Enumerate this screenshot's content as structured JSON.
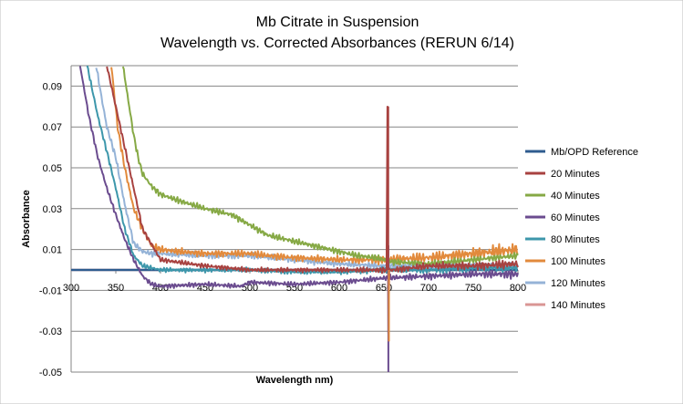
{
  "chart_data": {
    "type": "line",
    "title": "Mb Citrate in Suspension",
    "subtitle": "Wavelength vs. Corrected Absorbances (RERUN 6/14)",
    "xlabel": "Wavelength nm)",
    "ylabel": "Absorbance",
    "xlim": [
      300,
      800
    ],
    "ylim": [
      -0.05,
      0.1
    ],
    "x_ticks": [
      "300",
      "350",
      "400",
      "450",
      "500",
      "550",
      "600",
      "650",
      "700",
      "750",
      "800"
    ],
    "y_ticks": [
      "-0.05",
      "-0.03",
      "-0.01",
      "0.01",
      "0.03",
      "0.05",
      "0.07",
      "0.09"
    ],
    "grid": "horizontal",
    "legend_position": "right",
    "series": [
      {
        "name": "Mb/OPD Reference",
        "color": "#2F5C8F",
        "x": [
          300,
          800
        ],
        "y": [
          0,
          0
        ]
      },
      {
        "name": "20 Minutes",
        "color": "#A84240",
        "x": [
          340,
          350,
          360,
          370,
          380,
          400,
          450,
          500,
          550,
          600,
          650,
          653,
          654,
          655,
          656,
          657,
          660,
          700,
          750,
          800
        ],
        "y": [
          0.1,
          0.08,
          0.06,
          0.04,
          0.02,
          0.005,
          0.002,
          0.0,
          0.0,
          0.0,
          0.0,
          0.0,
          0.08,
          -0.03,
          0.0,
          0.0,
          0.0,
          0.002,
          0.002,
          0.003
        ]
      },
      {
        "name": "40 Minutes",
        "color": "#86A945",
        "x": [
          358,
          365,
          370,
          375,
          380,
          390,
          400,
          420,
          450,
          480,
          500,
          520,
          550,
          580,
          600,
          620,
          640,
          660,
          700,
          750,
          800
        ],
        "y": [
          0.1,
          0.08,
          0.066,
          0.055,
          0.047,
          0.041,
          0.037,
          0.034,
          0.03,
          0.027,
          0.022,
          0.017,
          0.014,
          0.011,
          0.009,
          0.007,
          0.006,
          0.004,
          0.003,
          0.005,
          0.007
        ]
      },
      {
        "name": "60 Minutes",
        "color": "#6B4C8F",
        "x": [
          310,
          320,
          330,
          340,
          350,
          360,
          370,
          380,
          390,
          400,
          450,
          490,
          500,
          550,
          600,
          650,
          700,
          750,
          800
        ],
        "y": [
          0.1,
          0.075,
          0.055,
          0.04,
          0.027,
          0.015,
          0.005,
          -0.003,
          -0.007,
          -0.008,
          -0.007,
          -0.008,
          -0.006,
          -0.007,
          -0.006,
          -0.004,
          -0.003,
          -0.002,
          -0.002
        ]
      },
      {
        "name": "80 Minutes",
        "color": "#3D97AB",
        "x": [
          318,
          330,
          340,
          350,
          360,
          370,
          380,
          390,
          400,
          450,
          500,
          550,
          600,
          650,
          700,
          750,
          800
        ],
        "y": [
          0.1,
          0.075,
          0.058,
          0.04,
          0.02,
          0.007,
          0.002,
          0.001,
          0.0,
          0.0,
          0.0,
          -0.001,
          -0.001,
          0.0,
          0.0,
          0.001,
          0.001
        ]
      },
      {
        "name": "100 Minutes",
        "color": "#E28A3C",
        "x": [
          345,
          352,
          360,
          370,
          380,
          390,
          400,
          420,
          450,
          480,
          500,
          520,
          550,
          600,
          650,
          700,
          750,
          800
        ],
        "y": [
          0.1,
          0.07,
          0.05,
          0.03,
          0.02,
          0.012,
          0.01,
          0.009,
          0.008,
          0.008,
          0.008,
          0.007,
          0.006,
          0.005,
          0.005,
          0.006,
          0.008,
          0.01
        ]
      },
      {
        "name": "120 Minutes",
        "color": "#95B3D7",
        "x": [
          328,
          335,
          340,
          350,
          360,
          370,
          380,
          390,
          400,
          450,
          500,
          550,
          600,
          650,
          700,
          750,
          800
        ],
        "y": [
          0.1,
          0.082,
          0.07,
          0.055,
          0.032,
          0.013,
          0.009,
          0.008,
          0.008,
          0.007,
          0.007,
          0.005,
          0.003,
          0.002,
          0.002,
          0.002,
          0.002
        ]
      },
      {
        "name": "140 Minutes",
        "color": "#D99694",
        "x": [
          300,
          800
        ],
        "y": [
          0,
          0
        ]
      }
    ]
  }
}
